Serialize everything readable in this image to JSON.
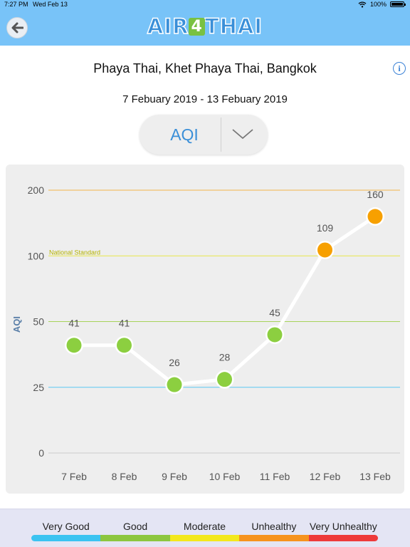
{
  "status_bar": {
    "time": "7:27 PM",
    "date": "Wed Feb 13",
    "battery": "100%"
  },
  "nav": {
    "logo_prefix": "AIR",
    "logo_digit": "4",
    "logo_suffix": "THAI"
  },
  "location": "Phaya Thai, Khet Phaya Thai, Bangkok",
  "date_range": "7 Febuary 2019 - 13 Febuary 2019",
  "parameter": {
    "selected": "AQI"
  },
  "chart_data": {
    "type": "line",
    "ylabel": "AQI",
    "xlabel": "",
    "categories": [
      "7 Feb",
      "8 Feb",
      "9 Feb",
      "10 Feb",
      "11 Feb",
      "12 Feb",
      "13 Feb"
    ],
    "values": [
      41,
      41,
      26,
      28,
      45,
      109,
      160
    ],
    "point_colors": [
      "#8ccf40",
      "#8ccf40",
      "#8ccf40",
      "#8ccf40",
      "#8ccf40",
      "#f7a000",
      "#f7a000"
    ],
    "y_ticks": [
      0,
      25,
      50,
      100,
      200
    ],
    "thresholds": [
      {
        "value": 25,
        "color": "#5bc8f2"
      },
      {
        "value": 50,
        "color": "#a7d35a"
      },
      {
        "value": 100,
        "color": "#e8e64a",
        "label": "National Standard"
      },
      {
        "value": 200,
        "color": "#f1b44a"
      }
    ],
    "grid": false
  },
  "legend": [
    {
      "label": "Very Good",
      "color": "#3bc3f1"
    },
    {
      "label": "Good",
      "color": "#8cc63f"
    },
    {
      "label": "Moderate",
      "color": "#f3e81d"
    },
    {
      "label": "Unhealthy",
      "color": "#f6931e"
    },
    {
      "label": "Very Unhealthy",
      "color": "#ee3a3a"
    }
  ]
}
